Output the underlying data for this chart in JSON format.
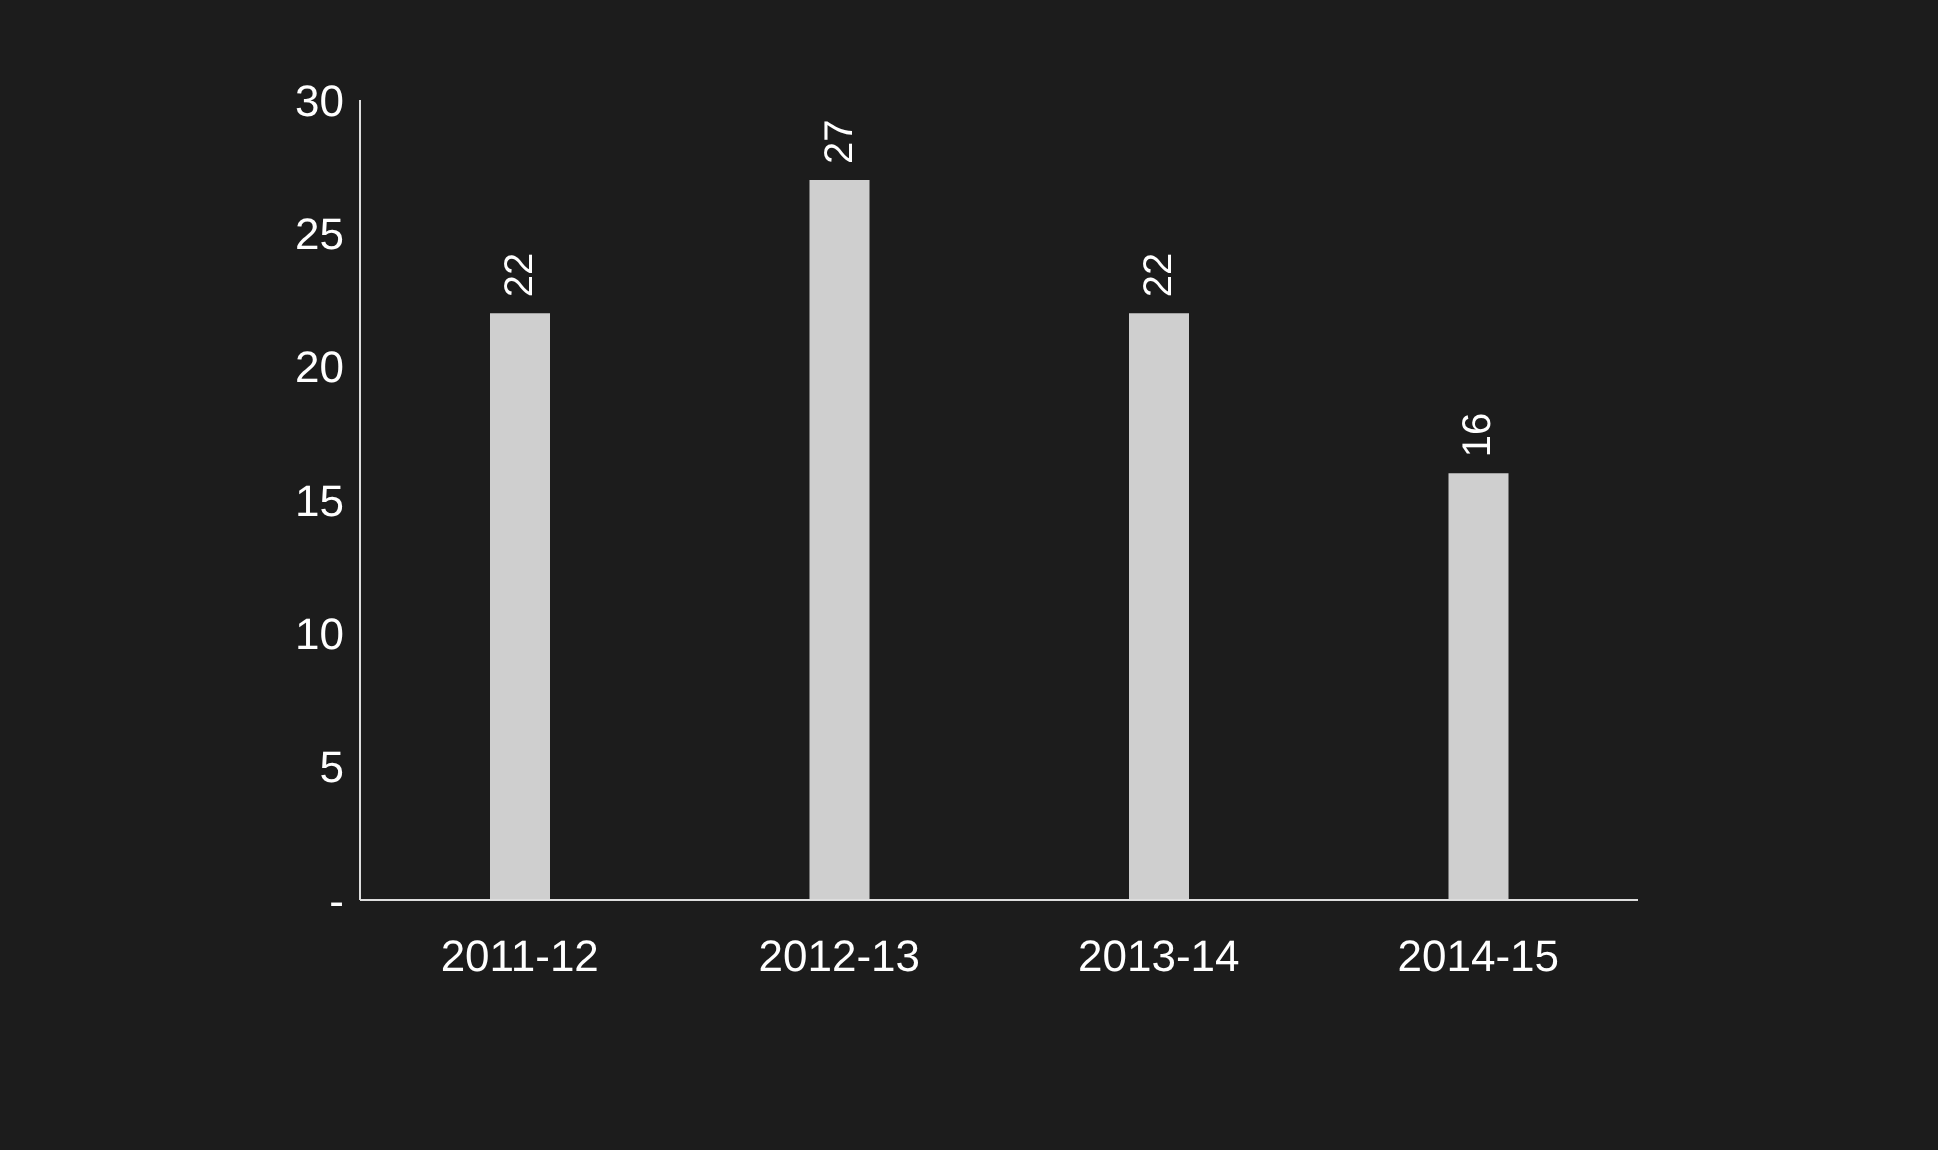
{
  "chart_data": {
    "type": "bar",
    "categories": [
      "2011-12",
      "2012-13",
      "2013-14",
      "2014-15"
    ],
    "values": [
      22,
      27,
      22,
      16
    ],
    "color": "#cfcfcf",
    "ylim": [
      0,
      30
    ],
    "yticks": [
      {
        "value": 0,
        "label": "-"
      },
      5,
      10,
      15,
      20,
      25,
      30
    ],
    "grid": false,
    "data_labels": true
  }
}
